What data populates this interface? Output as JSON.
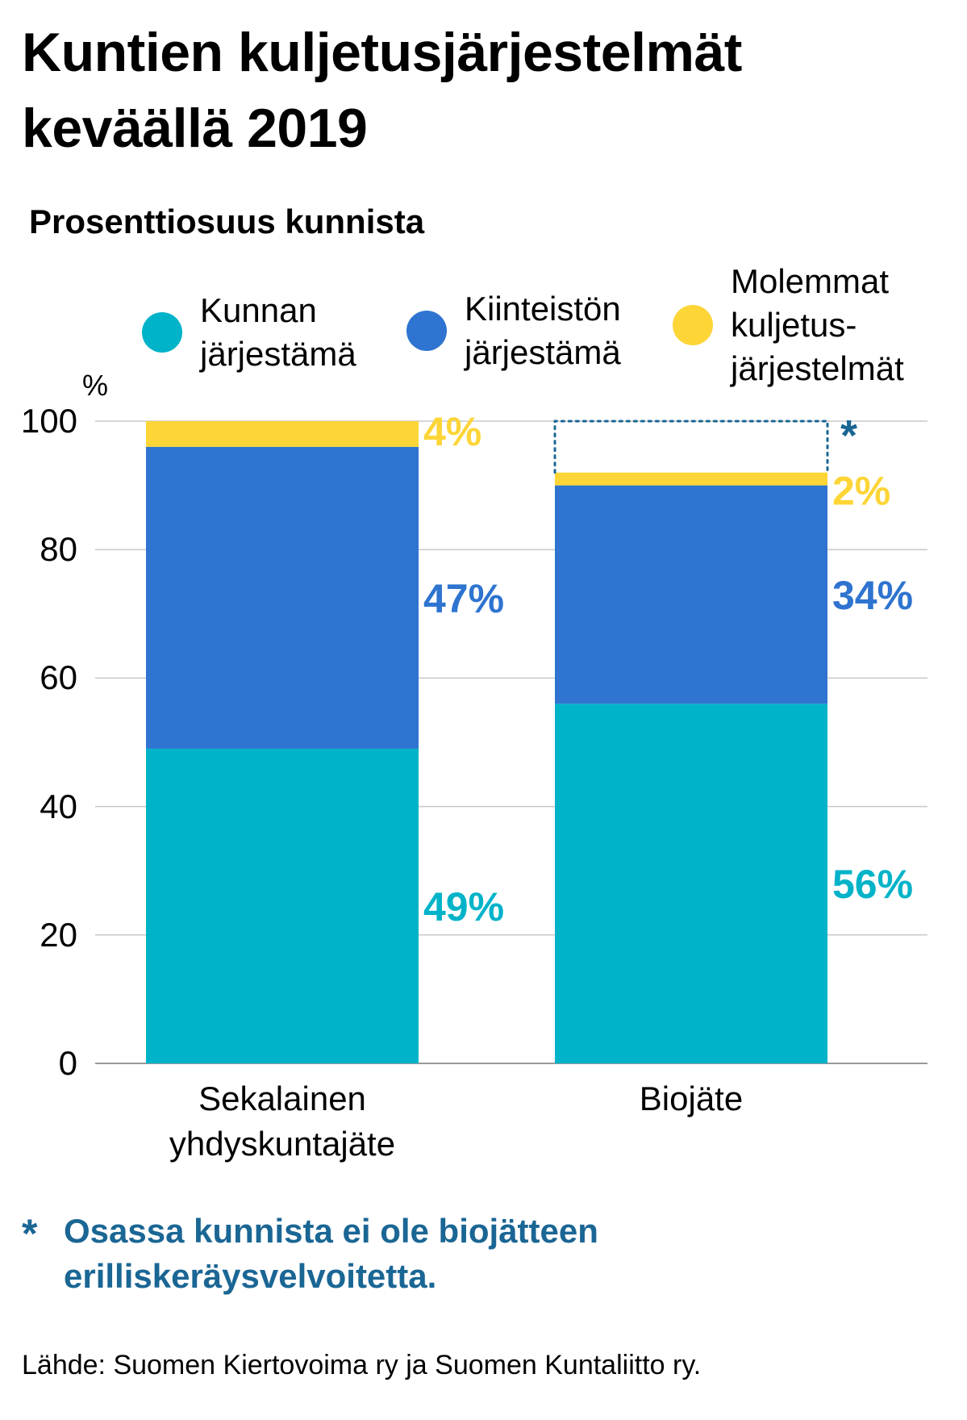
{
  "title": "Kuntien kuljetusjärjestelmät keväällä 2019",
  "subtitle": "Prosenttiosuus kunnista",
  "legend": [
    {
      "label": "Kunnan\njärjestämä",
      "color": "#00b3c8"
    },
    {
      "label": "Kiinteistön\njärjestämä",
      "color": "#2e74d0"
    },
    {
      "label": "Molemmat\nkuljetus-\njärjestelmät",
      "color": "#fdd537"
    }
  ],
  "y_unit": "%",
  "footnote": {
    "marker": "*",
    "text": "Osassa kunnista ei ole biojätteen\nerilliskeräysvelvoitetta."
  },
  "source": "Lähde: Suomen Kiertovoima ry ja Suomen Kuntaliitto ry.",
  "chart_data": {
    "type": "bar",
    "stacked": true,
    "title": "Kuntien kuljetusjärjestelmät keväällä 2019",
    "subtitle": "Prosenttiosuus kunnista",
    "xlabel": "",
    "ylabel": "%",
    "ylim": [
      0,
      100
    ],
    "yticks": [
      0,
      20,
      40,
      60,
      80,
      100
    ],
    "grid": true,
    "legend_position": "top",
    "categories": [
      "Sekalainen\nyhdyskuntajäte",
      "Biojäte"
    ],
    "series": [
      {
        "name": "Kunnan järjestämä",
        "color": "#00b3c8",
        "values": [
          49,
          56
        ],
        "labels": [
          "49%",
          "56%"
        ]
      },
      {
        "name": "Kiinteistön järjestämä",
        "color": "#2e74d0",
        "values": [
          47,
          34
        ],
        "labels": [
          "47%",
          "34%"
        ]
      },
      {
        "name": "Molemmat kuljetusjärjestelmät",
        "color": "#fdd537",
        "values": [
          4,
          2
        ],
        "labels": [
          "4%",
          "2%"
        ]
      }
    ],
    "annotations": [
      {
        "category": "Biojäte",
        "type": "dotted-outline-to-100",
        "marker": "*",
        "color": "#1a6694"
      }
    ]
  }
}
